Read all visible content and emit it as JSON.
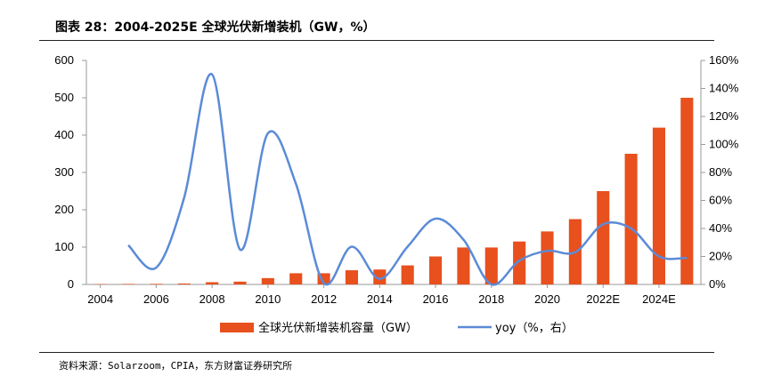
{
  "title": "图表 28：2004-2025E 全球光伏新增装机（GW，%）",
  "source": "资料来源：Solarzoom，CPIA，东方财富证券研究所",
  "chart_data": {
    "type": "bar+line",
    "categories": [
      "2004",
      "2005",
      "2006",
      "2007",
      "2008",
      "2009",
      "2010",
      "2011",
      "2012",
      "2013",
      "2014",
      "2015",
      "2016",
      "2017",
      "2018",
      "2019",
      "2020",
      "2021",
      "2022E",
      "2023E",
      "2024E",
      "2025E"
    ],
    "x_tick_labels": [
      "2004",
      "2006",
      "2008",
      "2010",
      "2012",
      "2014",
      "2016",
      "2018",
      "2020",
      "2022E",
      "2024E"
    ],
    "series": [
      {
        "name": "全球光伏新增装机容量（GW）",
        "type": "bar",
        "axis": "left",
        "color": "#E8501E",
        "values": [
          1,
          1.4,
          1.6,
          2.5,
          6,
          7.5,
          17,
          30,
          30,
          38,
          40,
          51,
          75,
          99,
          99,
          115,
          142,
          175,
          250,
          350,
          420,
          500
        ]
      },
      {
        "name": "yoy（%，右）",
        "type": "line",
        "axis": "right",
        "color": "#5B8BD6",
        "values": [
          null,
          28,
          12,
          62,
          150,
          25,
          108,
          72,
          1,
          27,
          4,
          27,
          47,
          32,
          0,
          17,
          24,
          23,
          43,
          40,
          20,
          19
        ]
      }
    ],
    "y_left": {
      "ticks": [
        "0",
        "100",
        "200",
        "300",
        "400",
        "500",
        "600"
      ],
      "lim": [
        0,
        600
      ]
    },
    "y_right": {
      "ticks": [
        "0%",
        "20%",
        "40%",
        "60%",
        "80%",
        "100%",
        "120%",
        "140%",
        "160%"
      ],
      "lim": [
        0,
        160
      ]
    },
    "legend": {
      "placement": "bottom"
    }
  }
}
